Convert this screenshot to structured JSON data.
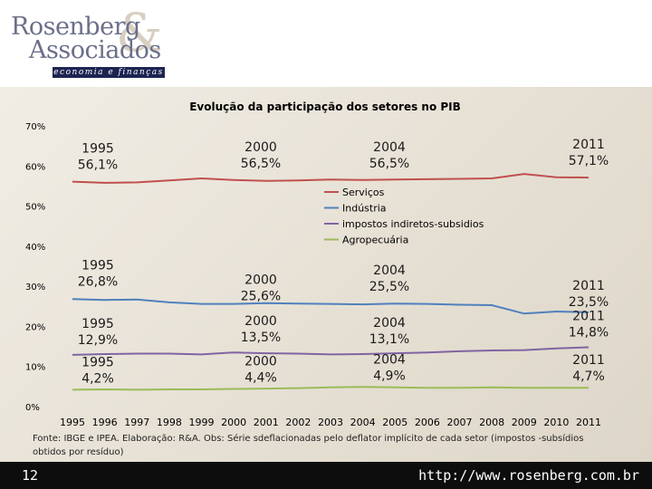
{
  "logo": {
    "line1": "Rosenberg",
    "line2": "Associados",
    "amp": "&",
    "tagline": "economia e finanças"
  },
  "footer": {
    "page_number": "12",
    "url": "http://www.rosenberg.com.br"
  },
  "source_note": "Fonte: IBGE e IPEA. Elaboração: R&A. Obs: Série sdeflacionadas pelo deflator implícito de cada setor (impostos -subsídios obtidos por resíduo)",
  "chart_data": {
    "type": "line",
    "title": "Evolução da participação dos setores no PIB",
    "xlabel": "",
    "ylabel": "",
    "ylim": [
      0,
      70
    ],
    "yticks": [
      "0%",
      "10%",
      "20%",
      "30%",
      "40%",
      "50%",
      "60%",
      "70%"
    ],
    "x": [
      "1995",
      "1996",
      "1997",
      "1998",
      "1999",
      "2000",
      "2001",
      "2002",
      "2003",
      "2004",
      "2005",
      "2006",
      "2007",
      "2008",
      "2009",
      "2010",
      "2011"
    ],
    "grid": false,
    "legend_position": "center",
    "series": [
      {
        "name": "Serviços",
        "color": "#c0504d",
        "values": [
          56.1,
          55.8,
          55.9,
          56.4,
          56.9,
          56.5,
          56.3,
          56.4,
          56.6,
          56.5,
          56.6,
          56.7,
          56.8,
          56.9,
          58.0,
          57.2,
          57.1
        ]
      },
      {
        "name": "Indústria",
        "color": "#4f81bd",
        "values": [
          26.8,
          26.6,
          26.7,
          26.0,
          25.6,
          25.6,
          25.8,
          25.7,
          25.6,
          25.5,
          25.7,
          25.6,
          25.4,
          25.3,
          23.2,
          23.7,
          23.5
        ]
      },
      {
        "name": "impostos indiretos-subsidios",
        "color": "#8064a2",
        "values": [
          12.9,
          13.1,
          13.2,
          13.2,
          13.0,
          13.5,
          13.3,
          13.2,
          13.0,
          13.1,
          13.3,
          13.5,
          13.8,
          14.0,
          14.1,
          14.5,
          14.8
        ]
      },
      {
        "name": "Agropecuária",
        "color": "#9bbb59",
        "values": [
          4.2,
          4.3,
          4.2,
          4.3,
          4.3,
          4.4,
          4.5,
          4.6,
          4.8,
          4.9,
          4.8,
          4.7,
          4.7,
          4.8,
          4.7,
          4.7,
          4.7
        ]
      }
    ],
    "annotations": [
      {
        "series": 0,
        "x": "1995",
        "label": [
          "1995",
          "56,1%"
        ]
      },
      {
        "series": 0,
        "x": "2000",
        "label": [
          "2000",
          "56,5%"
        ]
      },
      {
        "series": 0,
        "x": "2004",
        "label": [
          "2004",
          "56,5%"
        ]
      },
      {
        "series": 0,
        "x": "2011",
        "label": [
          "2011",
          "57,1%"
        ]
      },
      {
        "series": 1,
        "x": "1995",
        "label": [
          "1995",
          "26,8%"
        ]
      },
      {
        "series": 1,
        "x": "2000",
        "label": [
          "2000",
          "25,6%"
        ]
      },
      {
        "series": 1,
        "x": "2004",
        "label": [
          "2004",
          "25,5%"
        ]
      },
      {
        "series": 1,
        "x": "2011",
        "label": [
          "2011",
          "23,5%"
        ]
      },
      {
        "series": 2,
        "x": "1995",
        "label": [
          "1995",
          "12,9%"
        ]
      },
      {
        "series": 2,
        "x": "2000",
        "label": [
          "2000",
          "13,5%"
        ]
      },
      {
        "series": 2,
        "x": "2004",
        "label": [
          "2004",
          "13,1%"
        ]
      },
      {
        "series": 2,
        "x": "2011",
        "label": [
          "2011",
          "14,8%"
        ]
      },
      {
        "series": 3,
        "x": "1995",
        "label": [
          "1995",
          "4,2%"
        ]
      },
      {
        "series": 3,
        "x": "2000",
        "label": [
          "2000",
          "4,4%"
        ]
      },
      {
        "series": 3,
        "x": "2004",
        "label": [
          "2004",
          "4,9%"
        ]
      },
      {
        "series": 3,
        "x": "2011",
        "label": [
          "2011",
          "4,7%"
        ]
      }
    ]
  }
}
